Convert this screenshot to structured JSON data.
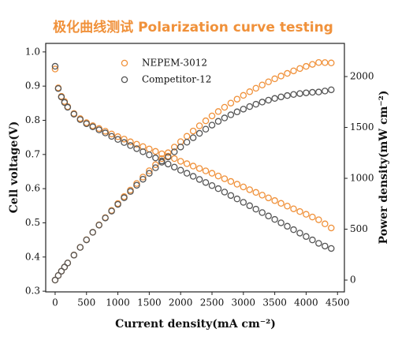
{
  "chart_data": {
    "type": "scatter",
    "title": "极化曲线测试 Polarization curve testing",
    "x_label": "Current density(mA cm⁻²)",
    "y_label": "Cell voltage(V)",
    "y2_label": "Power density(mW cm⁻²)",
    "x": [
      0,
      50,
      100,
      150,
      200,
      300,
      400,
      500,
      600,
      700,
      800,
      900,
      1000,
      1100,
      1200,
      1300,
      1400,
      1500,
      1600,
      1700,
      1800,
      1900,
      2000,
      2100,
      2200,
      2300,
      2400,
      2500,
      2600,
      2700,
      2800,
      2900,
      3000,
      3100,
      3200,
      3300,
      3400,
      3500,
      3600,
      3700,
      3800,
      3900,
      4000,
      4100,
      4200,
      4300,
      4400
    ],
    "series": [
      {
        "name": "NEPEM-3012",
        "color": "#f0913a",
        "values": [
          0.95,
          0.895,
          0.87,
          0.855,
          0.84,
          0.82,
          0.805,
          0.793,
          0.784,
          0.776,
          0.768,
          0.76,
          0.752,
          0.745,
          0.737,
          0.73,
          0.723,
          0.716,
          0.709,
          0.702,
          0.695,
          0.688,
          0.68,
          0.673,
          0.666,
          0.659,
          0.652,
          0.645,
          0.637,
          0.629,
          0.621,
          0.613,
          0.605,
          0.597,
          0.589,
          0.581,
          0.573,
          0.565,
          0.557,
          0.549,
          0.541,
          0.533,
          0.525,
          0.517,
          0.509,
          0.497,
          0.485
        ]
      },
      {
        "name": "Competitor-12",
        "color": "#555555",
        "values": [
          0.958,
          0.893,
          0.868,
          0.852,
          0.838,
          0.818,
          0.802,
          0.79,
          0.781,
          0.772,
          0.763,
          0.753,
          0.744,
          0.735,
          0.726,
          0.717,
          0.708,
          0.699,
          0.69,
          0.681,
          0.672,
          0.663,
          0.654,
          0.645,
          0.636,
          0.627,
          0.618,
          0.609,
          0.6,
          0.59,
          0.58,
          0.57,
          0.56,
          0.55,
          0.54,
          0.53,
          0.52,
          0.51,
          0.5,
          0.49,
          0.48,
          0.47,
          0.46,
          0.45,
          0.44,
          0.432,
          0.425
        ]
      },
      {
        "color": "#f0913a",
        "axis": "y2",
        "values": [
          0,
          45,
          87,
          128,
          168,
          246,
          322,
          397,
          470,
          543,
          614,
          684,
          752,
          820,
          884,
          949,
          1012,
          1074,
          1134,
          1193,
          1251,
          1307,
          1360,
          1413,
          1465,
          1516,
          1565,
          1613,
          1656,
          1698,
          1739,
          1778,
          1815,
          1851,
          1885,
          1917,
          1948,
          1978,
          2005,
          2031,
          2056,
          2079,
          2100,
          2120,
          2138,
          2137,
          2134
        ]
      },
      {
        "color": "#555555",
        "axis": "y2",
        "values": [
          0,
          45,
          87,
          128,
          168,
          245,
          321,
          395,
          469,
          540,
          610,
          678,
          744,
          809,
          871,
          932,
          991,
          1049,
          1104,
          1158,
          1210,
          1260,
          1308,
          1355,
          1399,
          1442,
          1483,
          1523,
          1560,
          1593,
          1624,
          1653,
          1680,
          1705,
          1728,
          1749,
          1768,
          1785,
          1800,
          1813,
          1824,
          1833,
          1840,
          1845,
          1848,
          1858,
          1870
        ]
      }
    ],
    "xlim": [
      -150,
      4610
    ],
    "xticks": [
      0,
      500,
      1000,
      1500,
      2000,
      2500,
      3000,
      3500,
      4000,
      4500
    ],
    "ylim": [
      0.298,
      1.025
    ],
    "yticks": [
      0.3,
      0.4,
      0.5,
      0.6,
      0.7,
      0.8,
      0.9,
      {
        "value": 1,
        "label": "1.0"
      }
    ],
    "y2lim": [
      -116,
      2326
    ],
    "y2ticks": [
      0,
      500,
      1000,
      1500,
      2000
    ],
    "legend": "upper-left",
    "grid": false
  }
}
